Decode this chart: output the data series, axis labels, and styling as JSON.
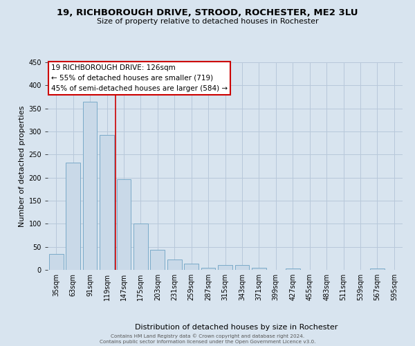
{
  "title": "19, RICHBOROUGH DRIVE, STROOD, ROCHESTER, ME2 3LU",
  "subtitle": "Size of property relative to detached houses in Rochester",
  "xlabel": "Distribution of detached houses by size in Rochester",
  "ylabel": "Number of detached properties",
  "categories": [
    "35sqm",
    "63sqm",
    "91sqm",
    "119sqm",
    "147sqm",
    "175sqm",
    "203sqm",
    "231sqm",
    "259sqm",
    "287sqm",
    "315sqm",
    "343sqm",
    "371sqm",
    "399sqm",
    "427sqm",
    "455sqm",
    "483sqm",
    "511sqm",
    "539sqm",
    "567sqm",
    "595sqm"
  ],
  "values": [
    35,
    233,
    365,
    293,
    196,
    101,
    44,
    23,
    13,
    5,
    10,
    10,
    5,
    0,
    3,
    0,
    0,
    0,
    0,
    3,
    0
  ],
  "bar_color": "#c9d9e8",
  "bar_edge_color": "#7aaac8",
  "grid_color": "#b8c8da",
  "background_color": "#d8e4ef",
  "vline_x_idx": 3,
  "vline_color": "#cc0000",
  "annotation_title": "19 RICHBOROUGH DRIVE: 126sqm",
  "annotation_line1": "← 55% of detached houses are smaller (719)",
  "annotation_line2": "45% of semi-detached houses are larger (584) →",
  "annotation_box_facecolor": "#ffffff",
  "annotation_box_edgecolor": "#cc0000",
  "footer1": "Contains HM Land Registry data © Crown copyright and database right 2024.",
  "footer2": "Contains public sector information licensed under the Open Government Licence v3.0.",
  "ylim": [
    0,
    450
  ],
  "yticks": [
    0,
    50,
    100,
    150,
    200,
    250,
    300,
    350,
    400,
    450
  ],
  "title_fontsize": 9.5,
  "subtitle_fontsize": 8,
  "ylabel_fontsize": 8,
  "xlabel_fontsize": 8,
  "tick_fontsize": 7,
  "footer_fontsize": 5.2
}
